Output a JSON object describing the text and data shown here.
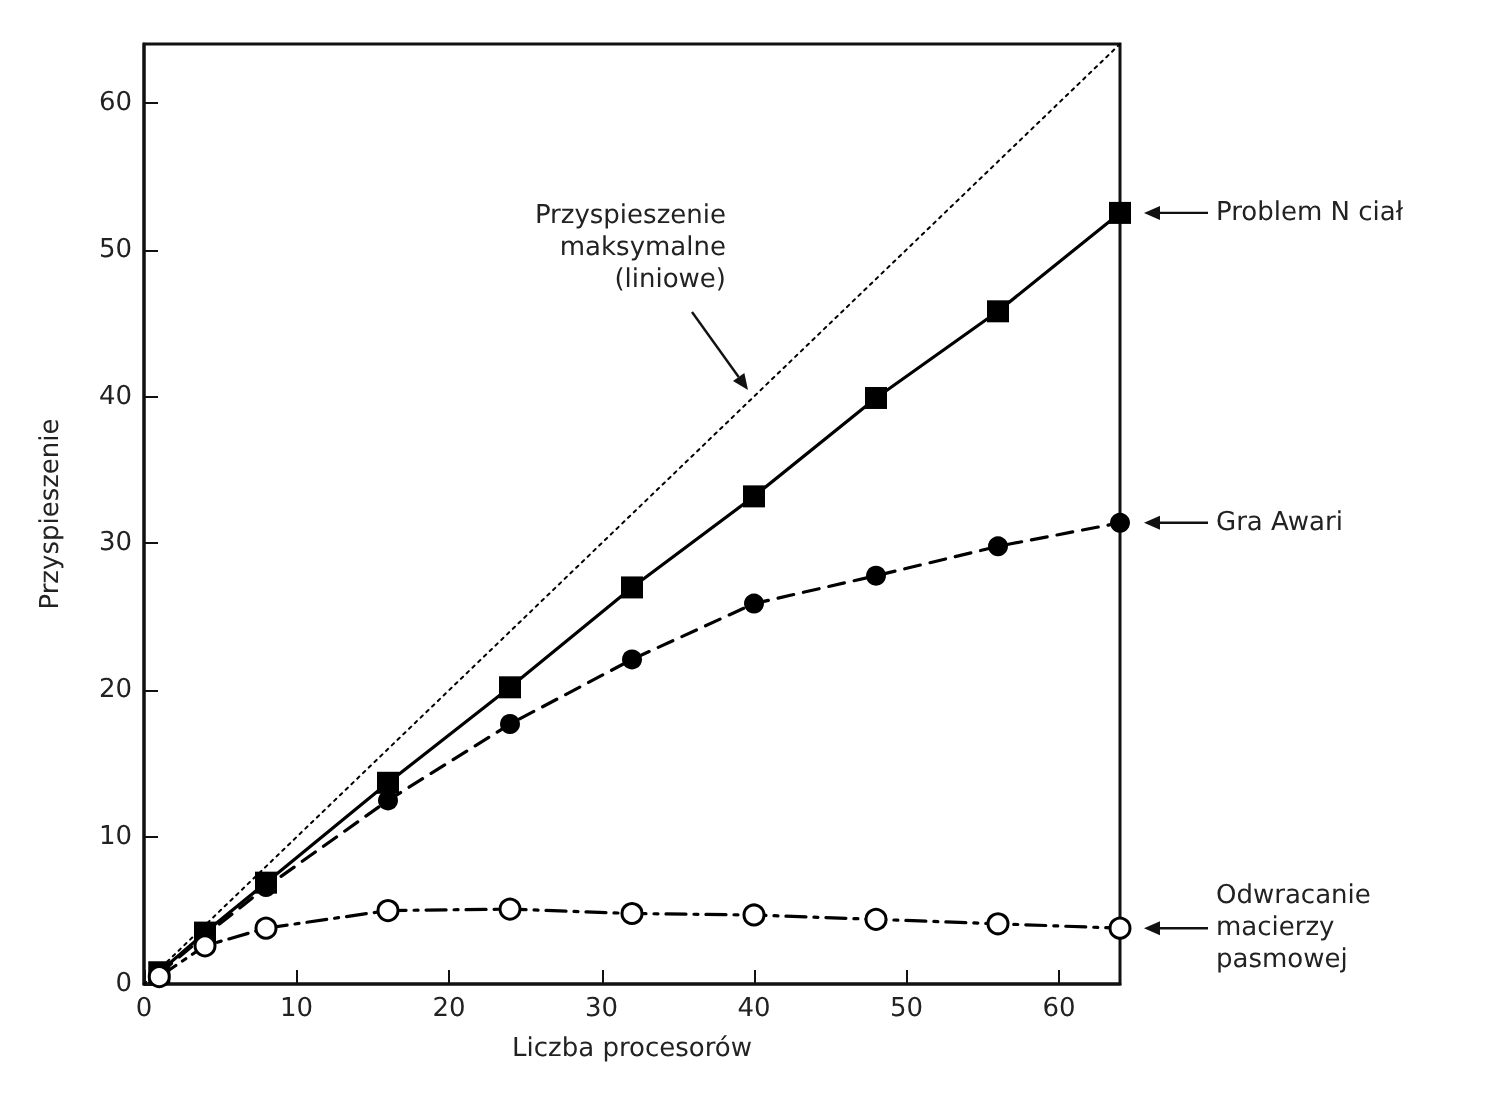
{
  "chart_data": {
    "type": "line",
    "xlabel": "Liczba procesorów",
    "ylabel": "Przyspieszenie",
    "xlim": [
      0,
      64
    ],
    "ylim": [
      0,
      64
    ],
    "xticks": [
      0,
      10,
      20,
      30,
      40,
      50,
      60
    ],
    "yticks": [
      0,
      10,
      20,
      30,
      40,
      50,
      60
    ],
    "grid": false,
    "legend": false,
    "x": [
      1,
      4,
      8,
      16,
      24,
      32,
      40,
      48,
      56,
      64
    ],
    "series": [
      {
        "color": "#000000",
        "x": [
          0,
          64
        ],
        "values": [
          0,
          64
        ],
        "line_style": "dotted",
        "marker": "none"
      },
      {
        "name": "Problem N ciał",
        "color": "#000000",
        "values": [
          0.8,
          3.5,
          6.9,
          13.7,
          20.2,
          27,
          33.2,
          39.9,
          45.8,
          52.5
        ],
        "line_style": "solid",
        "marker": "square"
      },
      {
        "name": "Gra Awari",
        "color": "#000000",
        "values": [
          0.7,
          3.3,
          6.6,
          12.5,
          17.7,
          22.1,
          25.9,
          27.8,
          29.8,
          31.4
        ],
        "line_style": "dashed",
        "marker": "circle"
      },
      {
        "name": "Odwracanie macierzy pasmowej",
        "color": "#000000",
        "values": [
          0.5,
          2.6,
          3.8,
          5.0,
          5.1,
          4.8,
          4.7,
          4.4,
          4.1,
          3.8
        ],
        "line_style": "dashdot",
        "marker": "open circle"
      }
    ],
    "annotations": [
      "Przyspieszenie\nmaksymalne\n(liniowe)"
    ]
  }
}
